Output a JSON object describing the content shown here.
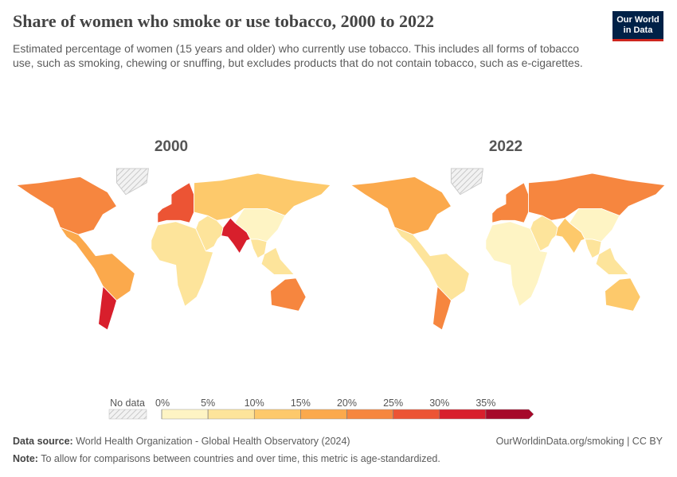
{
  "header": {
    "title": "Share of women who smoke or use tobacco, 2000 to 2022",
    "subtitle": "Estimated percentage of women (15 years and older) who currently use tobacco. This includes all forms of tobacco use, such as smoking, chewing or snuffing, but excludes products that do not contain tobacco, such as e-cigarettes.",
    "logo": [
      "Our World",
      "in Data"
    ]
  },
  "chart_data": {
    "type": "choropleth",
    "maps": [
      {
        "title": "2000",
        "values": [
          22,
          15,
          30,
          27,
          10,
          5,
          5,
          33,
          3,
          7,
          22
        ]
      },
      {
        "title": "2022",
        "values": [
          17,
          7,
          22,
          22,
          20,
          3,
          5,
          12,
          2,
          5,
          12
        ]
      }
    ],
    "legend": {
      "no_data": "No data",
      "lim": [
        0,
        40
      ],
      "ticks": [
        {
          "value": 0,
          "label": "0%"
        },
        {
          "value": 5,
          "label": "5%"
        },
        {
          "value": 10,
          "label": "10%"
        },
        {
          "value": 15,
          "label": "15%"
        },
        {
          "value": 20,
          "label": "20%"
        },
        {
          "value": 25,
          "label": "25%"
        },
        {
          "value": 30,
          "label": "30%"
        },
        {
          "value": 35,
          "label": "35%"
        }
      ],
      "colors": [
        "#fef4c4",
        "#fde49b",
        "#fdc96b",
        "#fba94c",
        "#f6863f",
        "#ec5434",
        "#d81f2c",
        "#a6092a"
      ]
    }
  },
  "footer": {
    "source_label": "Data source:",
    "source": "World Health Organization - Global Health Observatory (2024)",
    "link": "OurWorldinData.org/smoking | CC BY",
    "note_label": "Note:",
    "note": "To allow for comparisons between countries and over time, this metric is age-standardized."
  }
}
